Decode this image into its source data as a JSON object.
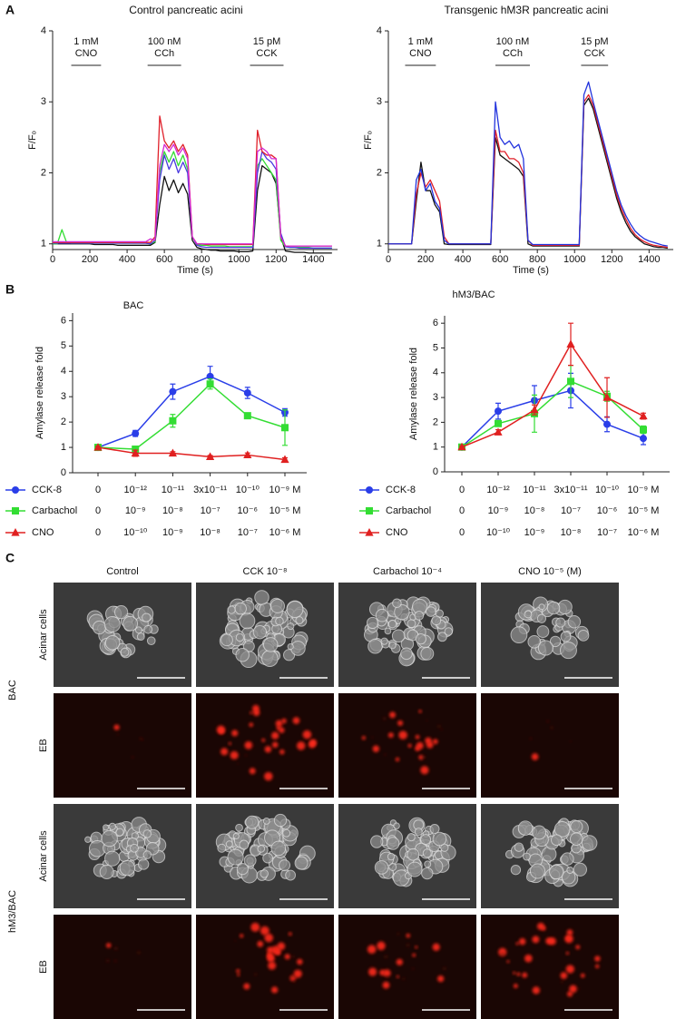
{
  "panel_labels": [
    "A",
    "B",
    "C"
  ],
  "chart_data": [
    {
      "type": "line",
      "title": "Control pancreatic acini",
      "xlabel": "Time (s)",
      "ylabel": "F/Fₒ",
      "xlim": [
        0,
        1530
      ],
      "xticks": [
        0,
        200,
        400,
        600,
        800,
        1000,
        1200,
        1400
      ],
      "ylim": [
        0.92,
        4
      ],
      "yticks": [
        1,
        2,
        3,
        4
      ],
      "annotations": [
        {
          "lines": [
            "1 mM",
            "CNO"
          ],
          "start": 100,
          "end": 260
        },
        {
          "lines": [
            "100 nM",
            "CCh"
          ],
          "start": 510,
          "end": 690
        },
        {
          "lines": [
            "15 pM",
            "CCK"
          ],
          "start": 1060,
          "end": 1240
        }
      ],
      "x": [
        0,
        25,
        50,
        75,
        100,
        125,
        150,
        175,
        200,
        225,
        250,
        275,
        300,
        325,
        350,
        375,
        400,
        425,
        450,
        475,
        500,
        525,
        550,
        575,
        600,
        625,
        650,
        675,
        700,
        725,
        750,
        775,
        800,
        825,
        850,
        875,
        900,
        925,
        950,
        975,
        1000,
        1025,
        1050,
        1075,
        1100,
        1125,
        1150,
        1175,
        1200,
        1225,
        1250,
        1275,
        1300,
        1325,
        1350,
        1375,
        1400,
        1425,
        1450,
        1475,
        1500
      ],
      "series": [
        {
          "color": "#111111",
          "values": [
            1.0,
            1.0,
            1.0,
            1.0,
            1.0,
            1.0,
            1.0,
            1.0,
            1.0,
            0.99,
            0.99,
            0.99,
            0.99,
            0.99,
            0.98,
            0.98,
            0.98,
            0.98,
            0.98,
            0.98,
            0.98,
            0.98,
            1.02,
            1.55,
            1.95,
            1.75,
            1.9,
            1.72,
            1.85,
            1.7,
            1.05,
            0.95,
            0.93,
            0.92,
            0.91,
            0.91,
            0.9,
            0.9,
            0.9,
            0.9,
            0.89,
            0.89,
            0.89,
            0.9,
            1.75,
            2.1,
            2.05,
            2.0,
            1.85,
            1.1,
            0.9,
            0.89,
            0.88,
            0.88,
            0.88,
            0.87,
            0.87,
            0.87,
            0.87,
            0.87,
            0.87
          ]
        },
        {
          "color": "#33dd33",
          "values": [
            1.0,
            1.0,
            1.2,
            1.02,
            1.01,
            1.01,
            1.01,
            1.01,
            1.01,
            1.01,
            1.01,
            1.01,
            1.01,
            1.01,
            1.01,
            1.01,
            1.01,
            1.01,
            1.01,
            1.01,
            1.01,
            1.0,
            1.03,
            2.0,
            2.3,
            2.15,
            2.3,
            2.1,
            2.25,
            2.05,
            1.1,
            0.99,
            0.98,
            0.98,
            0.97,
            0.97,
            0.97,
            0.97,
            0.96,
            0.96,
            0.96,
            0.96,
            0.96,
            0.96,
            2.1,
            2.2,
            2.1,
            2.0,
            1.9,
            1.05,
            0.96,
            0.95,
            0.95,
            0.95,
            0.95,
            0.95,
            0.94,
            0.94,
            0.94,
            0.94,
            0.94
          ]
        },
        {
          "color": "#4a3adf",
          "values": [
            1.01,
            1.01,
            1.01,
            1.01,
            1.01,
            1.01,
            1.01,
            1.01,
            1.01,
            1.01,
            1.01,
            1.01,
            1.01,
            1.01,
            1.01,
            1.01,
            1.01,
            1.01,
            1.01,
            1.01,
            1.01,
            1.0,
            1.05,
            1.9,
            2.25,
            2.05,
            2.2,
            2.0,
            2.15,
            2.0,
            1.1,
            0.98,
            0.96,
            0.95,
            0.95,
            0.95,
            0.95,
            0.95,
            0.95,
            0.95,
            0.95,
            0.95,
            0.95,
            0.95,
            2.0,
            2.3,
            2.2,
            2.15,
            2.05,
            1.15,
            0.96,
            0.95,
            0.95,
            0.94,
            0.94,
            0.94,
            0.94,
            0.94,
            0.94,
            0.94,
            0.94
          ]
        },
        {
          "color": "#e0202a",
          "values": [
            1.02,
            1.02,
            1.02,
            1.02,
            1.02,
            1.02,
            1.02,
            1.02,
            1.02,
            1.02,
            1.02,
            1.02,
            1.02,
            1.02,
            1.02,
            1.02,
            1.02,
            1.02,
            1.02,
            1.02,
            1.02,
            1.02,
            1.1,
            2.8,
            2.45,
            2.35,
            2.45,
            2.3,
            2.4,
            2.25,
            1.1,
            1.0,
            1.0,
            0.99,
            0.99,
            0.99,
            0.99,
            0.99,
            0.99,
            0.99,
            0.99,
            0.99,
            0.99,
            0.99,
            2.6,
            2.3,
            2.25,
            2.25,
            2.2,
            1.1,
            0.97,
            0.97,
            0.97,
            0.97,
            0.97,
            0.97,
            0.97,
            0.97,
            0.97,
            0.97,
            0.97
          ]
        },
        {
          "color": "#d428d4",
          "values": [
            1.03,
            1.03,
            1.03,
            1.03,
            1.03,
            1.03,
            1.03,
            1.03,
            1.03,
            1.03,
            1.03,
            1.03,
            1.03,
            1.03,
            1.03,
            1.03,
            1.03,
            1.03,
            1.03,
            1.03,
            1.03,
            1.07,
            1.05,
            2.1,
            2.4,
            2.3,
            2.4,
            2.25,
            2.35,
            2.2,
            1.1,
            1.0,
            1.0,
            1.0,
            1.0,
            1.0,
            1.0,
            1.0,
            1.0,
            1.0,
            1.0,
            1.0,
            1.0,
            1.0,
            2.3,
            2.35,
            2.3,
            2.2,
            2.2,
            1.1,
            0.97,
            0.97,
            0.97,
            0.97,
            0.97,
            0.97,
            0.97,
            0.97,
            0.97,
            0.97,
            0.97
          ]
        }
      ]
    },
    {
      "type": "line",
      "title": "Transgenic hM3R pancreatic acini",
      "xlabel": "Time (s)",
      "ylabel": "F/Fₒ",
      "xlim": [
        0,
        1530
      ],
      "xticks": [
        0,
        200,
        400,
        600,
        800,
        1000,
        1200,
        1400
      ],
      "ylim": [
        0.92,
        4
      ],
      "yticks": [
        1,
        2,
        3,
        4
      ],
      "annotations": [
        {
          "lines": [
            "1 mM",
            "CNO"
          ],
          "start": 90,
          "end": 255
        },
        {
          "lines": [
            "100 nM",
            "CCh"
          ],
          "start": 575,
          "end": 760
        },
        {
          "lines": [
            "15 pM",
            "CCK"
          ],
          "start": 1035,
          "end": 1180
        }
      ],
      "x": [
        0,
        25,
        50,
        75,
        100,
        125,
        150,
        175,
        200,
        225,
        250,
        275,
        300,
        325,
        350,
        375,
        400,
        425,
        450,
        475,
        500,
        525,
        550,
        575,
        600,
        625,
        650,
        675,
        700,
        725,
        750,
        775,
        800,
        825,
        850,
        875,
        900,
        925,
        950,
        975,
        1000,
        1025,
        1050,
        1075,
        1100,
        1125,
        1150,
        1175,
        1200,
        1225,
        1250,
        1275,
        1300,
        1325,
        1350,
        1375,
        1400,
        1425,
        1450,
        1475,
        1500
      ],
      "series": [
        {
          "color": "#111111",
          "values": [
            1.0,
            1.0,
            1.0,
            1.0,
            1.0,
            1.0,
            1.6,
            2.15,
            1.75,
            1.75,
            1.55,
            1.45,
            1.0,
            0.99,
            0.99,
            0.99,
            0.99,
            0.99,
            0.99,
            0.99,
            0.99,
            0.99,
            0.99,
            2.5,
            2.25,
            2.2,
            2.15,
            2.1,
            2.05,
            1.95,
            1.0,
            0.97,
            0.97,
            0.97,
            0.97,
            0.97,
            0.97,
            0.97,
            0.97,
            0.97,
            0.97,
            0.97,
            2.95,
            3.05,
            2.9,
            2.65,
            2.4,
            2.15,
            1.9,
            1.65,
            1.45,
            1.3,
            1.18,
            1.1,
            1.05,
            1.0,
            0.98,
            0.96,
            0.95,
            0.95,
            0.94
          ]
        },
        {
          "color": "#e0202a",
          "values": [
            1.0,
            1.0,
            1.0,
            1.0,
            1.0,
            1.0,
            1.7,
            2.0,
            1.8,
            1.9,
            1.75,
            1.6,
            1.1,
            1.0,
            1.0,
            1.0,
            1.0,
            1.0,
            1.0,
            1.0,
            1.0,
            1.0,
            1.0,
            2.6,
            2.3,
            2.3,
            2.2,
            2.2,
            2.15,
            2.0,
            1.05,
            0.98,
            0.98,
            0.98,
            0.98,
            0.98,
            0.98,
            0.98,
            0.98,
            0.98,
            0.98,
            0.98,
            3.0,
            3.1,
            2.95,
            2.7,
            2.45,
            2.2,
            1.95,
            1.7,
            1.5,
            1.35,
            1.22,
            1.13,
            1.07,
            1.03,
            1.0,
            0.98,
            0.97,
            0.96,
            0.95
          ]
        },
        {
          "color": "#2233dd",
          "values": [
            1.0,
            1.0,
            1.0,
            1.0,
            1.0,
            1.0,
            1.9,
            2.05,
            1.75,
            1.85,
            1.6,
            1.5,
            1.05,
            1.0,
            1.0,
            1.0,
            1.0,
            1.0,
            1.0,
            1.0,
            1.0,
            1.0,
            1.0,
            3.0,
            2.5,
            2.4,
            2.45,
            2.35,
            2.4,
            2.2,
            1.05,
            0.99,
            0.99,
            0.99,
            0.99,
            0.99,
            0.99,
            0.99,
            0.99,
            0.99,
            0.99,
            0.99,
            3.1,
            3.28,
            3.0,
            2.75,
            2.5,
            2.25,
            2.0,
            1.75,
            1.55,
            1.4,
            1.28,
            1.18,
            1.12,
            1.07,
            1.04,
            1.02,
            1.0,
            0.98,
            0.97
          ]
        }
      ]
    },
    {
      "type": "errorbar",
      "title": "BAC",
      "ylabel": "Amylase release fold",
      "ylim": [
        0,
        6.3
      ],
      "yticks": [
        0,
        1,
        2,
        3,
        4,
        5,
        6
      ],
      "series": [
        {
          "name": "CCK-8",
          "color": "#2a3ee8",
          "marker": "circle",
          "categories": [
            "0",
            "10⁻¹²",
            "10⁻¹¹",
            "3x10⁻¹¹",
            "10⁻¹⁰",
            "10⁻⁹ M"
          ],
          "values": [
            1.0,
            1.55,
            3.2,
            3.8,
            3.15,
            2.38
          ],
          "errors": [
            0.05,
            0.12,
            0.3,
            0.4,
            0.22,
            0.15
          ]
        },
        {
          "name": "Carbachol",
          "color": "#33dd33",
          "marker": "square",
          "categories": [
            "0",
            "10⁻⁹",
            "10⁻⁸",
            "10⁻⁷",
            "10⁻⁶",
            "10⁻⁵ M"
          ],
          "values": [
            1.0,
            0.93,
            2.05,
            3.5,
            2.25,
            1.78
          ],
          "errors": [
            0.05,
            0.05,
            0.25,
            0.2,
            0.08,
            0.7
          ]
        },
        {
          "name": "CNO",
          "color": "#e02020",
          "marker": "triangle",
          "categories": [
            "0",
            "10⁻¹⁰",
            "10⁻⁹",
            "10⁻⁸",
            "10⁻⁷",
            "10⁻⁶ M"
          ],
          "values": [
            1.0,
            0.77,
            0.77,
            0.63,
            0.7,
            0.52
          ],
          "errors": [
            0.05,
            0.12,
            0.06,
            0.05,
            0.08,
            0.07
          ]
        }
      ]
    },
    {
      "type": "errorbar",
      "title": "hM3/BAC",
      "ylabel": "Amylase release fold",
      "ylim": [
        0,
        6.3
      ],
      "yticks": [
        0,
        1,
        2,
        3,
        4,
        5,
        6
      ],
      "series": [
        {
          "name": "CCK-8",
          "color": "#2a3ee8",
          "marker": "circle",
          "categories": [
            "0",
            "10⁻¹²",
            "10⁻¹¹",
            "3x10⁻¹¹",
            "10⁻¹⁰",
            "10⁻⁹ M"
          ],
          "values": [
            1.0,
            2.45,
            2.88,
            3.28,
            1.92,
            1.35
          ],
          "errors": [
            0.05,
            0.32,
            0.6,
            0.7,
            0.3,
            0.25
          ]
        },
        {
          "name": "Carbachol",
          "color": "#33dd33",
          "marker": "square",
          "categories": [
            "0",
            "10⁻⁹",
            "10⁻⁸",
            "10⁻⁷",
            "10⁻⁶",
            "10⁻⁵ M"
          ],
          "values": [
            1.0,
            1.95,
            2.35,
            3.65,
            3.05,
            1.7
          ],
          "errors": [
            0.05,
            0.1,
            0.75,
            0.65,
            0.2,
            0.15
          ]
        },
        {
          "name": "CNO",
          "color": "#e02020",
          "marker": "triangle",
          "categories": [
            "0",
            "10⁻¹⁰",
            "10⁻⁹",
            "10⁻⁸",
            "10⁻⁷",
            "10⁻⁶ M"
          ],
          "values": [
            1.0,
            1.6,
            2.5,
            5.15,
            3.0,
            2.25
          ],
          "errors": [
            0.05,
            0.1,
            0.2,
            0.85,
            0.8,
            0.12
          ]
        }
      ]
    }
  ],
  "image_grid": {
    "columns": [
      "Control",
      "CCK 10⁻⁸",
      "Carbachol 10⁻⁴",
      "CNO 10⁻⁵  (M)"
    ],
    "groups": [
      {
        "label": "BAC",
        "rows": [
          "Acinar cells",
          "EB"
        ]
      },
      {
        "label": "hM3/BAC",
        "rows": [
          "Acinar cells",
          "EB"
        ]
      }
    ]
  }
}
